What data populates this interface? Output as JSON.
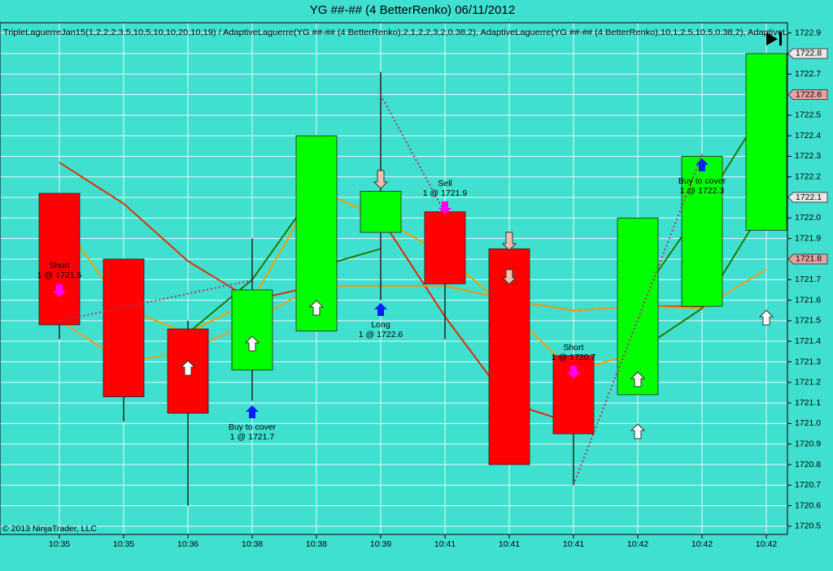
{
  "chart_data": {
    "type": "candlestick",
    "title": "YG ##-## (4 BetterRenko)  06/11/2012",
    "subtitle": "TripleLaguerreJan15(1,2,2,2,3,5,10,5,10,10,20,10,19) / AdaptiveLaguerre(YG ##-## (4 BetterRenko),2,1,2,2,3,2,0.38,2), AdaptiveLaguerre(YG ##-## (4 BetterRenko),10,1,2,5,10,5,0.38,2), AdaptiveL",
    "copyright": "© 2013 NinjaTrader, LLC",
    "categories": [
      "10:35",
      "10:35",
      "10:36",
      "10:38",
      "10:38",
      "10:39",
      "10:41",
      "10:41",
      "10:41",
      "10:42",
      "10:42",
      "10:42"
    ],
    "candles": {
      "open": [
        1722.12,
        1721.8,
        1721.46,
        1721.26,
        1721.45,
        1721.93,
        1722.03,
        1721.85,
        1721.33,
        1721.14,
        1721.57,
        1721.94
      ],
      "high": [
        1722.12,
        1721.8,
        1721.5,
        1721.9,
        1722.4,
        1722.71,
        1722.03,
        1721.85,
        1721.33,
        1722.0,
        1722.3,
        1722.8
      ],
      "low": [
        1721.41,
        1721.01,
        1720.6,
        1721.11,
        1721.45,
        1721.6,
        1721.41,
        1720.8,
        1720.7,
        1721.14,
        1721.57,
        1721.94
      ],
      "close": [
        1721.48,
        1721.13,
        1721.05,
        1721.65,
        1722.4,
        1722.13,
        1721.68,
        1720.8,
        1720.95,
        1722.0,
        1722.3,
        1722.8
      ],
      "up_color": "#00ff00",
      "down_color": "#ff0000"
    },
    "series": [
      {
        "color": "#e03000",
        "values": [
          1722.27,
          1722.07,
          1721.79,
          1721.6,
          1721.67,
          1721.67,
          1721.67,
          1721.6,
          1721.55,
          1721.57,
          1721.57,
          null
        ]
      },
      {
        "color": "#e02800",
        "values": [
          null,
          null,
          null,
          null,
          null,
          1722.0,
          1721.52,
          1721.1,
          1721.0,
          null,
          null,
          null
        ]
      },
      {
        "color": "#f0a000",
        "values": [
          1722.0,
          1721.56,
          1721.44,
          1721.6,
          1722.14,
          1722.0,
          1721.82,
          1721.55,
          1721.25,
          1721.35,
          null,
          null
        ]
      },
      {
        "color": "#e8a020",
        "values": [
          1721.5,
          1721.3,
          1721.35,
          1721.5,
          1721.67,
          1721.67,
          1721.67,
          1721.6,
          1721.55,
          1721.57,
          1721.56,
          1721.75
        ]
      },
      {
        "color": "#1f7a00",
        "values": [
          null,
          null,
          1721.44,
          1721.7,
          1722.14,
          null,
          null,
          null,
          null,
          null,
          null,
          null
        ]
      },
      {
        "color": "#1f7a00",
        "values": [
          null,
          null,
          null,
          null,
          1721.76,
          1721.85,
          null,
          null,
          null,
          1721.35,
          1721.56,
          1722.07
        ]
      },
      {
        "color": "#1f7a00",
        "values": [
          null,
          null,
          null,
          null,
          null,
          null,
          null,
          null,
          null,
          1721.6,
          1722.05,
          1722.55
        ]
      }
    ],
    "annotations": [
      [
        "Short",
        "1 @ 1721.5"
      ],
      [
        "Buy to cover",
        "1 @ 1721.7"
      ],
      [
        "Long",
        "1 @ 1722.6"
      ],
      [
        "Sell",
        "1 @ 1721.9"
      ],
      [
        "Short",
        "1 @ 1720.7"
      ],
      [
        "Buy to cover",
        "1 @ 1722.3"
      ]
    ],
    "price_markers": [
      1722.8,
      1722.6,
      1722.1,
      1721.8
    ],
    "ylim": [
      1720.46,
      1722.95
    ],
    "yticks": [
      1722.9,
      1722.8,
      1722.7,
      1722.6,
      1722.5,
      1722.4,
      1722.3,
      1722.2,
      1722.1,
      {
        "value": 1722.0,
        "label": "1722.0"
      },
      1721.9,
      1721.8,
      1721.7,
      1721.6,
      1721.5,
      1721.4,
      1721.3,
      1721.2,
      1721.1,
      {
        "value": 1721.0,
        "label": "1721.0"
      },
      1720.9,
      1720.8,
      1720.7,
      1720.6,
      1720.5
    ],
    "grid": true
  }
}
